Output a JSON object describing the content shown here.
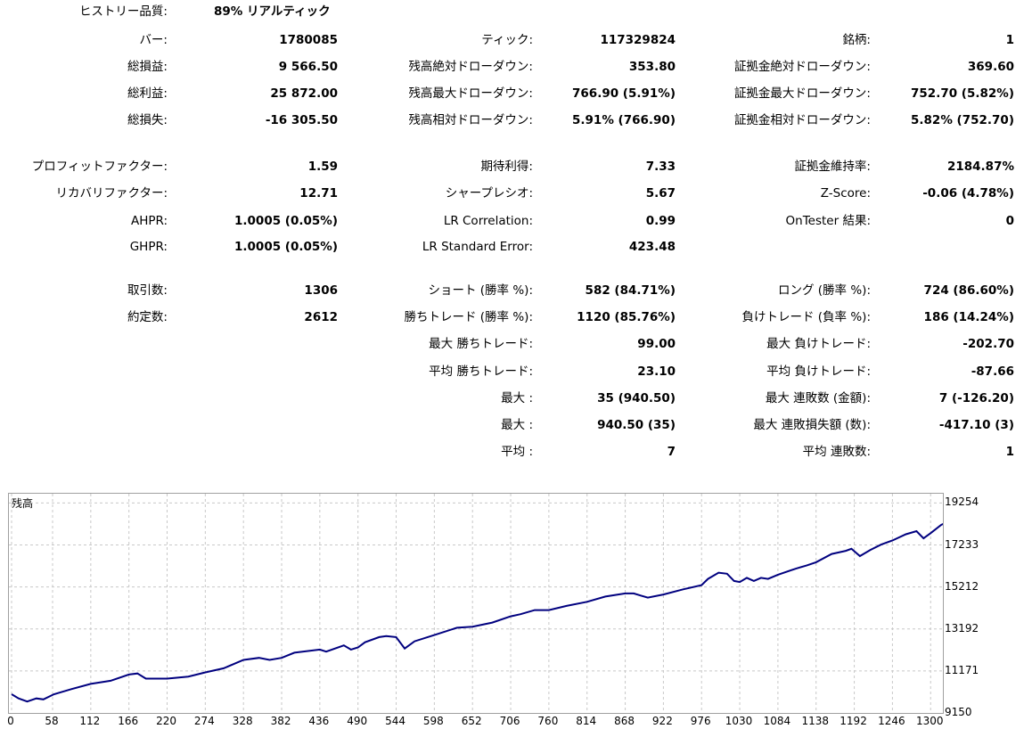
{
  "history_quality": {
    "label": "ヒストリー品質:",
    "value": "89% リアルティック"
  },
  "rows": [
    {
      "top": 36,
      "cells": [
        [
          "バー:",
          "1780085"
        ],
        [
          "ティック:",
          "117329824"
        ],
        [
          "銘柄:",
          "1"
        ]
      ]
    },
    {
      "top": 66,
      "cells": [
        [
          "総損益:",
          "9 566.50"
        ],
        [
          "残高絶対ドローダウン:",
          "353.80"
        ],
        [
          "証拠金絶対ドローダウン:",
          "369.60"
        ]
      ]
    },
    {
      "top": 96,
      "cells": [
        [
          "総利益:",
          "25 872.00"
        ],
        [
          "残高最大ドローダウン:",
          "766.90 (5.91%)"
        ],
        [
          "証拠金最大ドローダウン:",
          "752.70 (5.82%)"
        ]
      ]
    },
    {
      "top": 126,
      "cells": [
        [
          "総損失:",
          "-16 305.50"
        ],
        [
          "残高相対ドローダウン:",
          "5.91% (766.90)"
        ],
        [
          "証拠金相対ドローダウン:",
          "5.82% (752.70)"
        ]
      ]
    },
    {
      "top": 178,
      "cells": [
        [
          "プロフィットファクター:",
          "1.59"
        ],
        [
          "期待利得:",
          "7.33"
        ],
        [
          "証拠金維持率:",
          "2184.87%"
        ]
      ]
    },
    {
      "top": 208,
      "cells": [
        [
          "リカバリファクター:",
          "12.71"
        ],
        [
          "シャープレシオ:",
          "5.67"
        ],
        [
          "Z-Score:",
          "-0.06 (4.78%)"
        ]
      ]
    },
    {
      "top": 239,
      "cells": [
        [
          "AHPR:",
          "1.0005 (0.05%)"
        ],
        [
          "LR Correlation:",
          "0.99"
        ],
        [
          "OnTester 結果:",
          "0"
        ]
      ]
    },
    {
      "top": 268,
      "cells": [
        [
          "GHPR:",
          "1.0005 (0.05%)"
        ],
        [
          "LR Standard Error:",
          "423.48"
        ],
        [
          "",
          ""
        ]
      ]
    },
    {
      "top": 317,
      "cells": [
        [
          "取引数:",
          "1306"
        ],
        [
          "ショート (勝率 %):",
          "582 (84.71%)"
        ],
        [
          "ロング (勝率 %):",
          "724 (86.60%)"
        ]
      ]
    },
    {
      "top": 347,
      "cells": [
        [
          "約定数:",
          "2612"
        ],
        [
          "勝ちトレード (勝率 %):",
          "1120 (85.76%)"
        ],
        [
          "負けトレード (負率 %):",
          "186 (14.24%)"
        ]
      ]
    },
    {
      "top": 377,
      "cells": [
        [
          "",
          ""
        ],
        [
          "最大 勝ちトレード:",
          "99.00"
        ],
        [
          "最大 負けトレード:",
          "-202.70"
        ]
      ]
    },
    {
      "top": 408,
      "cells": [
        [
          "",
          ""
        ],
        [
          "平均 勝ちトレード:",
          "23.10"
        ],
        [
          "平均 負けトレード:",
          "-87.66"
        ]
      ]
    },
    {
      "top": 438,
      "cells": [
        [
          "",
          ""
        ],
        [
          "最大 :",
          "35 (940.50)"
        ],
        [
          "最大 連敗数 (金額):",
          "7 (-126.20)"
        ]
      ]
    },
    {
      "top": 468,
      "cells": [
        [
          "",
          ""
        ],
        [
          "最大 :",
          "940.50 (35)"
        ],
        [
          "最大 連敗損失額 (数):",
          "-417.10 (3)"
        ]
      ]
    },
    {
      "top": 498,
      "cells": [
        [
          "",
          ""
        ],
        [
          "平均 :",
          "7"
        ],
        [
          "平均 連敗数:",
          "1"
        ]
      ]
    }
  ],
  "chart_data": {
    "type": "line",
    "title": "残高",
    "x_ticks": [
      0,
      58,
      112,
      166,
      220,
      274,
      328,
      382,
      436,
      490,
      544,
      598,
      652,
      706,
      760,
      814,
      868,
      922,
      976,
      1030,
      1084,
      1138,
      1192,
      1246,
      1300
    ],
    "y_ticks": [
      9150,
      11171,
      13192,
      15212,
      17233,
      19254
    ],
    "xlim": [
      0,
      1306
    ],
    "ylim": [
      9150,
      19700
    ],
    "series": [
      {
        "color": "#00007f",
        "points": [
          [
            0,
            10050
          ],
          [
            10,
            9850
          ],
          [
            22,
            9700
          ],
          [
            35,
            9850
          ],
          [
            45,
            9800
          ],
          [
            60,
            10050
          ],
          [
            85,
            10300
          ],
          [
            112,
            10550
          ],
          [
            140,
            10700
          ],
          [
            166,
            11000
          ],
          [
            178,
            11050
          ],
          [
            190,
            10800
          ],
          [
            220,
            10800
          ],
          [
            250,
            10900
          ],
          [
            274,
            11100
          ],
          [
            300,
            11300
          ],
          [
            328,
            11700
          ],
          [
            350,
            11800
          ],
          [
            365,
            11700
          ],
          [
            382,
            11800
          ],
          [
            400,
            12050
          ],
          [
            436,
            12200
          ],
          [
            445,
            12100
          ],
          [
            470,
            12400
          ],
          [
            480,
            12200
          ],
          [
            490,
            12300
          ],
          [
            500,
            12550
          ],
          [
            520,
            12800
          ],
          [
            530,
            12850
          ],
          [
            544,
            12800
          ],
          [
            556,
            12250
          ],
          [
            570,
            12600
          ],
          [
            598,
            12900
          ],
          [
            630,
            13250
          ],
          [
            652,
            13300
          ],
          [
            680,
            13500
          ],
          [
            706,
            13800
          ],
          [
            720,
            13900
          ],
          [
            740,
            14100
          ],
          [
            760,
            14100
          ],
          [
            785,
            14300
          ],
          [
            814,
            14500
          ],
          [
            840,
            14750
          ],
          [
            868,
            14900
          ],
          [
            880,
            14900
          ],
          [
            890,
            14800
          ],
          [
            900,
            14700
          ],
          [
            922,
            14850
          ],
          [
            950,
            15100
          ],
          [
            976,
            15300
          ],
          [
            985,
            15600
          ],
          [
            1000,
            15900
          ],
          [
            1012,
            15850
          ],
          [
            1022,
            15500
          ],
          [
            1030,
            15450
          ],
          [
            1040,
            15650
          ],
          [
            1050,
            15500
          ],
          [
            1060,
            15650
          ],
          [
            1070,
            15600
          ],
          [
            1084,
            15800
          ],
          [
            1110,
            16100
          ],
          [
            1125,
            16250
          ],
          [
            1138,
            16400
          ],
          [
            1160,
            16800
          ],
          [
            1180,
            16950
          ],
          [
            1188,
            17050
          ],
          [
            1200,
            16700
          ],
          [
            1215,
            17000
          ],
          [
            1230,
            17250
          ],
          [
            1246,
            17450
          ],
          [
            1265,
            17750
          ],
          [
            1280,
            17900
          ],
          [
            1290,
            17550
          ],
          [
            1300,
            17800
          ],
          [
            1315,
            18200
          ],
          [
            1330,
            18450
          ]
        ]
      }
    ]
  }
}
